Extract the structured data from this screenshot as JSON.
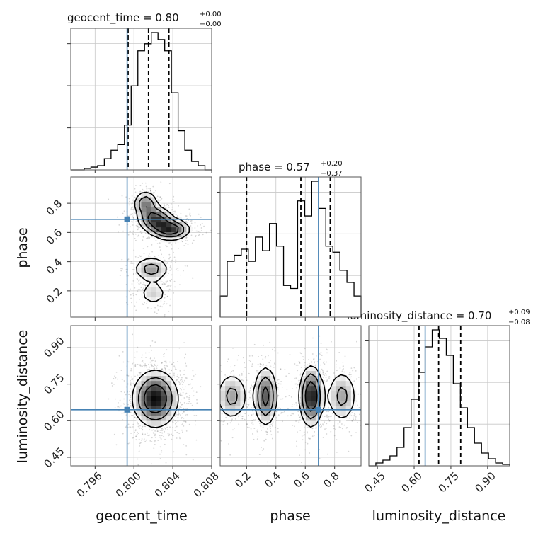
{
  "chart_data": {
    "type": "corner",
    "truth_color": "#4682b4",
    "quantile_color": "#000000",
    "parameters": [
      {
        "name": "geocent_time",
        "axis_label": "geocent_time",
        "range": [
          0.7935,
          0.808
        ],
        "ticks": [
          0.796,
          0.8,
          0.804,
          0.808
        ],
        "tick_labels": [
          "0.796",
          "0.800",
          "0.804",
          "0.808"
        ],
        "truth": 0.7993,
        "quantiles": [
          0.7994,
          0.8015,
          0.8036
        ],
        "title": {
          "prefix": "geocent_time = 0.80",
          "sup": "+0.00",
          "sub": "−0.00"
        },
        "hist": [
          0,
          0,
          1,
          2,
          3,
          8,
          14,
          18,
          32,
          60,
          85,
          90,
          98,
          93,
          85,
          55,
          28,
          14,
          6,
          3,
          0
        ]
      },
      {
        "name": "phase",
        "axis_label": "phase",
        "range": [
          0.02,
          0.98
        ],
        "ticks": [
          0.2,
          0.4,
          0.6,
          0.8
        ],
        "tick_labels": [
          "0.2",
          "0.4",
          "0.6",
          "0.8"
        ],
        "truth": 0.69,
        "quantiles": [
          0.2,
          0.57,
          0.77
        ],
        "title": {
          "prefix": "phase = 0.57",
          "sup": "+0.20",
          "sub": "−0.37"
        },
        "hist": [
          14,
          37,
          41,
          45,
          37,
          53,
          44,
          62,
          47,
          21,
          19,
          77,
          67,
          90,
          72,
          47,
          43,
          31,
          23,
          14
        ]
      },
      {
        "name": "luminosity_distance",
        "axis_label": "luminosity_distance",
        "range": [
          0.415,
          0.99
        ],
        "ticks": [
          0.45,
          0.6,
          0.75,
          0.9
        ],
        "tick_labels": [
          "0.45",
          "0.60",
          "0.75",
          "0.90"
        ],
        "truth": 0.645,
        "quantiles": [
          0.62,
          0.7,
          0.79
        ],
        "title": {
          "prefix": "luminosity_distance = 0.70",
          "sup": "+0.09",
          "sub": "−0.08"
        },
        "hist": [
          0,
          2,
          4,
          7,
          13,
          27,
          47,
          66,
          84,
          96,
          90,
          78,
          58,
          41,
          27,
          16,
          9,
          5,
          2,
          1
        ]
      }
    ],
    "panels_2d": [
      {
        "x": "geocent_time",
        "y": "phase",
        "modes": [
          {
            "cx": 0.8012,
            "cy": 0.8,
            "sx": 0.0007,
            "sy": 0.05,
            "w": 0.7
          },
          {
            "cx": 0.8022,
            "cy": 0.69,
            "sx": 0.001,
            "sy": 0.05,
            "w": 0.9
          },
          {
            "cx": 0.8038,
            "cy": 0.62,
            "sx": 0.0011,
            "sy": 0.04,
            "w": 1.0
          },
          {
            "cx": 0.8018,
            "cy": 0.35,
            "sx": 0.0011,
            "sy": 0.05,
            "w": 0.6
          },
          {
            "cx": 0.802,
            "cy": 0.18,
            "sx": 0.0009,
            "sy": 0.05,
            "w": 0.4
          }
        ]
      },
      {
        "x": "geocent_time",
        "y": "luminosity_distance",
        "modes": [
          {
            "cx": 0.8022,
            "cy": 0.69,
            "sx": 0.0013,
            "sy": 0.065,
            "w": 1.0
          }
        ]
      },
      {
        "x": "phase",
        "y": "luminosity_distance",
        "modes": [
          {
            "cx": 0.1,
            "cy": 0.7,
            "sx": 0.065,
            "sy": 0.06,
            "w": 0.5
          },
          {
            "cx": 0.33,
            "cy": 0.7,
            "sx": 0.045,
            "sy": 0.07,
            "w": 0.8
          },
          {
            "cx": 0.64,
            "cy": 0.7,
            "sx": 0.045,
            "sy": 0.07,
            "w": 1.0
          },
          {
            "cx": 0.85,
            "cy": 0.7,
            "sx": 0.06,
            "sy": 0.065,
            "w": 0.5
          }
        ]
      }
    ]
  }
}
